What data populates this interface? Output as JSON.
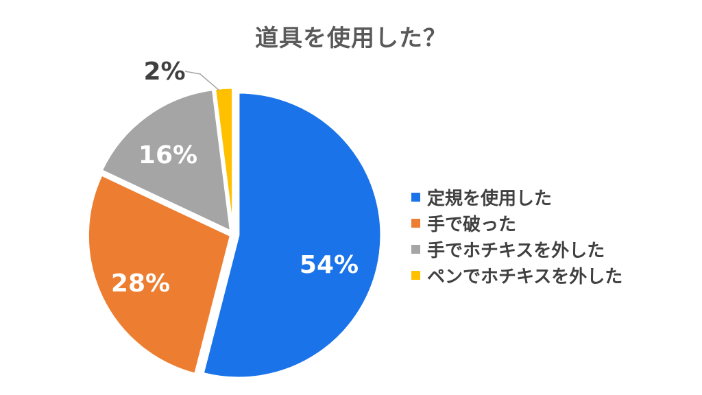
{
  "chart_data": {
    "type": "pie",
    "title": "道具を使用した？",
    "categories": [
      "定規を使用した",
      "手で破った",
      "手でホチキスを外した",
      "ペンでホチキスを外した"
    ],
    "values": [
      54,
      28,
      16,
      2
    ],
    "labels": [
      "54%",
      "28%",
      "16%",
      "2%"
    ],
    "colors": [
      "#1a73e8",
      "#ed7d31",
      "#a5a5a5",
      "#ffc000"
    ],
    "label_colors": [
      "#ffffff",
      "#ffffff",
      "#ffffff",
      "#404040"
    ],
    "legend_position": "right"
  }
}
